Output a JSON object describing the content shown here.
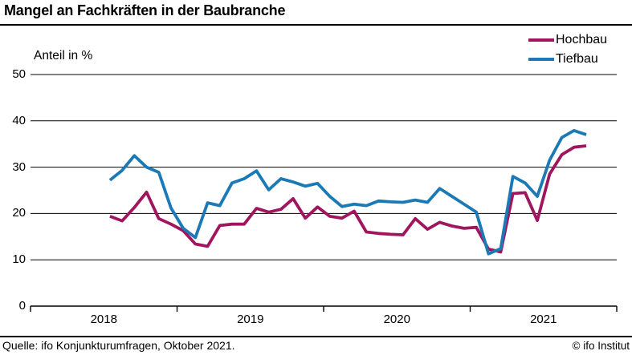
{
  "header": {
    "title": "Mangel an Fachkräften in der Baubranche"
  },
  "legend": [
    {
      "label": "Hochbau",
      "color": "#a0155e"
    },
    {
      "label": "Tiefbau",
      "color": "#1b79b5"
    }
  ],
  "axis_label": "Anteil in %",
  "footer": {
    "source": "Quelle: ifo Konjunkturumfragen, Oktober 2021.",
    "copyright": "© ifo Institut"
  },
  "chart_data": {
    "type": "line",
    "title": "Mangel an Fachkräften in der Baubranche",
    "ylabel": "Anteil in %",
    "ylim": [
      0,
      50
    ],
    "yticks": [
      0,
      10,
      20,
      30,
      40,
      50
    ],
    "grid": "horizontal",
    "legend_position": "top-right",
    "x_years": [
      "2018",
      "2019",
      "2020",
      "2021"
    ],
    "x_start": "2018-07",
    "x_end": "2021-10",
    "x_frequency": "monthly",
    "series": [
      {
        "name": "Hochbau",
        "color": "#a0155e",
        "values": [
          19.4,
          18.4,
          21.3,
          24.6,
          18.9,
          17.7,
          16.3,
          13.4,
          12.9,
          17.4,
          17.7,
          17.7,
          21.1,
          20.3,
          20.9,
          23.2,
          19.0,
          21.4,
          19.4,
          19.0,
          20.5,
          16.0,
          15.7,
          15.5,
          15.4,
          18.9,
          16.6,
          18.1,
          17.3,
          16.8,
          17.0,
          12.3,
          11.7,
          24.3,
          24.5,
          18.5,
          28.5,
          32.7,
          34.3,
          34.6
        ]
      },
      {
        "name": "Tiefbau",
        "color": "#1b79b5",
        "values": [
          27.2,
          29.3,
          32.5,
          30.0,
          28.9,
          21.2,
          16.8,
          14.8,
          22.3,
          21.7,
          26.6,
          27.5,
          29.2,
          25.1,
          27.5,
          26.8,
          25.9,
          26.5,
          23.7,
          21.5,
          22.0,
          21.7,
          22.7,
          22.5,
          22.4,
          22.9,
          22.4,
          25.4,
          23.7,
          22.0,
          20.3,
          11.3,
          12.4,
          28.0,
          26.6,
          23.7,
          31.5,
          36.4,
          37.9,
          37.0
        ]
      }
    ]
  }
}
